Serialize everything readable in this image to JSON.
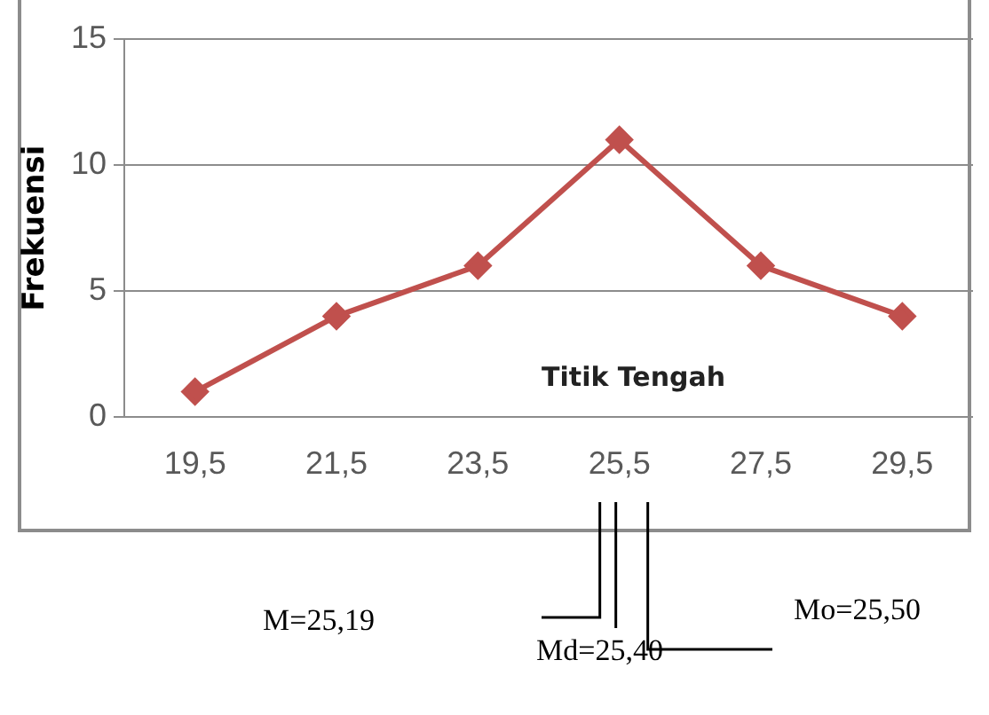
{
  "chart_data": {
    "type": "line",
    "xlabel": "Titik Tengah",
    "ylabel": "Frekuensi",
    "categories": [
      "19,5",
      "21,5",
      "23,5",
      "25,5",
      "27,5",
      "29,5"
    ],
    "series": [
      {
        "color": "#c0504d",
        "values": [
          1,
          4,
          6,
          11,
          6,
          4
        ]
      }
    ],
    "ylim": [
      0,
      15
    ],
    "yticks": [
      0,
      5,
      10,
      15
    ],
    "grid": "y",
    "legend": false,
    "marker": "diamond",
    "line_style": "solid",
    "annotations": [
      "M=25,19",
      "Md=25,40",
      "Mo=25,50"
    ]
  }
}
